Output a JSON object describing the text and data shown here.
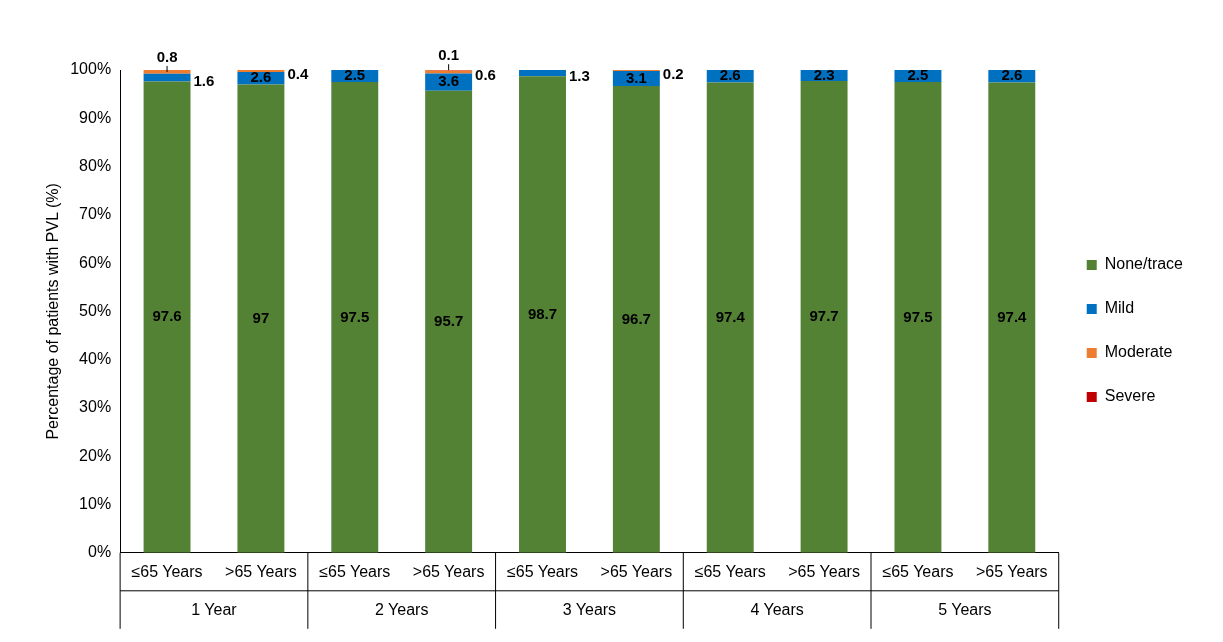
{
  "chart_data": {
    "type": "bar",
    "stacked": true,
    "ylabel": "Percentage of patients with PVL (%)",
    "categories": [
      "≤65 Years",
      ">65 Years",
      "≤65 Years",
      ">65 Years",
      "≤65 Years",
      ">65 Years",
      "≤65 Years",
      ">65 Years",
      "≤65 Years",
      ">65 Years"
    ],
    "annotations": [
      "1 Year",
      "2 Years",
      "3 Years",
      "4 Years",
      "5 Years"
    ],
    "series": [
      {
        "name": "None/trace",
        "color": "#548235",
        "values": [
          97.6,
          97,
          97.5,
          95.7,
          98.7,
          96.7,
          97.4,
          97.7,
          97.5,
          97.4
        ],
        "value_labels": [
          "97.6",
          "97",
          "97.5",
          "95.7",
          "98.7",
          "96.7",
          "97.4",
          "97.7",
          "97.5",
          "97.4"
        ]
      },
      {
        "name": "Mild",
        "color": "#0070c0",
        "values": [
          1.6,
          2.6,
          2.5,
          3.6,
          1.3,
          3.1,
          2.6,
          2.3,
          2.5,
          2.6
        ],
        "value_labels": [
          "1.6",
          "2.6",
          "2.5",
          "3.6",
          "1.3",
          "3.1",
          "2.6",
          "2.3",
          "2.5",
          "2.6"
        ]
      },
      {
        "name": "Moderate",
        "color": "#ed7d31",
        "values": [
          0.8,
          0.4,
          0,
          0.6,
          0,
          0.2,
          0,
          0,
          0,
          0
        ],
        "value_labels": [
          "0.8",
          "0.4",
          null,
          "0.6",
          null,
          "0.2",
          null,
          null,
          null,
          null
        ]
      },
      {
        "name": "Severe",
        "color": "#c00000",
        "values": [
          0,
          0,
          0,
          0.1,
          0,
          0,
          0,
          0,
          0,
          0
        ],
        "value_labels": [
          null,
          null,
          null,
          "0.1",
          null,
          null,
          null,
          null,
          null,
          null
        ]
      }
    ],
    "ylim": [
      0,
      100
    ],
    "yticks": [
      {
        "value": 0,
        "label": "0%"
      },
      {
        "value": 10,
        "label": "10%"
      },
      {
        "value": 20,
        "label": "20%"
      },
      {
        "value": 30,
        "label": "30%"
      },
      {
        "value": 40,
        "label": "40%"
      },
      {
        "value": 50,
        "label": "50%"
      },
      {
        "value": 60,
        "label": "60%"
      },
      {
        "value": 70,
        "label": "70%"
      },
      {
        "value": 80,
        "label": "80%"
      },
      {
        "value": 90,
        "label": "90%"
      },
      {
        "value": 100,
        "label": "100%"
      }
    ],
    "grid": false,
    "legend": "right"
  }
}
